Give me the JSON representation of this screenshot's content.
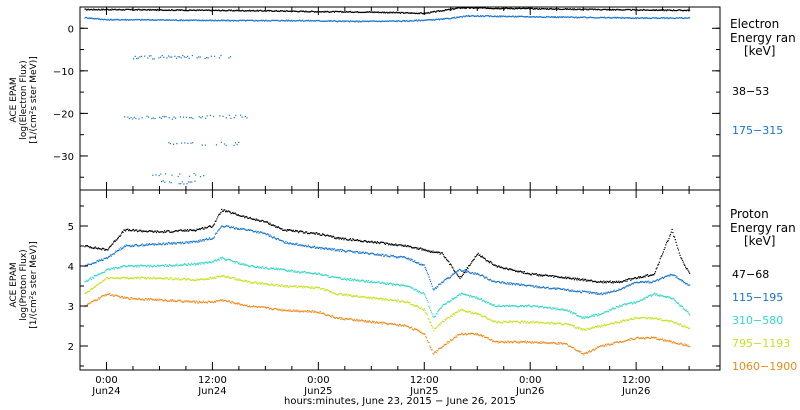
{
  "chart_data": [
    {
      "type": "scatter",
      "panel": "electron",
      "ylabel_lines": [
        "ACE EPAM",
        "log(Electron Flux)",
        "[1/(cm²s ster MeV)]"
      ],
      "ylim": [
        -38,
        5
      ],
      "yticks": [
        0,
        -10,
        -20,
        -30
      ],
      "ytick_labels": [
        "0",
        "−10",
        "−20",
        "−30"
      ],
      "legend_title": "Electron Energy range [keV]",
      "legend_title_lines": [
        "Electron",
        "Energy ran",
        "[keV]"
      ],
      "series": [
        {
          "name": "38–53",
          "label": "38−53",
          "color": "#000000",
          "points": [
            [
              -2.5,
              4.4
            ],
            [
              0,
              4.4
            ],
            [
              6,
              4.3
            ],
            [
              12,
              4.2
            ],
            [
              18,
              4.1
            ],
            [
              24,
              3.9
            ],
            [
              30,
              3.8
            ],
            [
              36,
              3.5
            ],
            [
              40,
              4.8
            ],
            [
              48,
              4.6
            ],
            [
              60,
              4.3
            ],
            [
              66,
              4.2
            ]
          ]
        },
        {
          "name": "175–315",
          "label": "175−315",
          "color": "#1874CD",
          "points": [
            [
              -2.5,
              2.5
            ],
            [
              0,
              2.0
            ],
            [
              3,
              2.0
            ],
            [
              14,
              1.8
            ],
            [
              22,
              1.8
            ],
            [
              28,
              1.6
            ],
            [
              34,
              1.7
            ],
            [
              38,
              2.1
            ],
            [
              41,
              2.9
            ],
            [
              48,
              2.7
            ],
            [
              60,
              2.4
            ],
            [
              66,
              2.4
            ]
          ],
          "dropouts": [
            {
              "x": [
                2,
                9
              ],
              "y": -21
            },
            {
              "x": [
                9,
                16
              ],
              "y": -20.8
            },
            {
              "x": [
                7,
                15
              ],
              "y": -27.2
            },
            {
              "x": [
                3,
                14
              ],
              "y": -6.8
            },
            {
              "x": [
                5,
                11
              ],
              "y": -34.5
            },
            {
              "x": [
                6,
                10
              ],
              "y": -36.2
            }
          ]
        }
      ]
    },
    {
      "type": "scatter",
      "panel": "proton",
      "ylabel_lines": [
        "ACE EPAM",
        "log(Proton Flux)",
        "[1/(cm²s ster MeV)]"
      ],
      "ylim": [
        1.4,
        5.9
      ],
      "yticks": [
        2,
        3,
        4,
        5
      ],
      "ytick_labels": [
        "2",
        "3",
        "4",
        "5"
      ],
      "legend_title": "Proton Energy range [keV]",
      "legend_title_lines": [
        "Proton",
        "Energy ran",
        "[keV]"
      ],
      "series": [
        {
          "name": "47–68",
          "label": "47−68",
          "color": "#000000",
          "points": [
            [
              -2.5,
              4.5
            ],
            [
              0,
              4.4
            ],
            [
              2,
              4.9
            ],
            [
              6,
              4.85
            ],
            [
              10,
              4.9
            ],
            [
              12,
              5.0
            ],
            [
              13,
              5.4
            ],
            [
              16,
              5.2
            ],
            [
              18,
              5.1
            ],
            [
              20,
              4.9
            ],
            [
              24,
              4.8
            ],
            [
              26,
              4.7
            ],
            [
              30,
              4.6
            ],
            [
              34,
              4.5
            ],
            [
              38,
              4.3
            ],
            [
              40,
              3.7
            ],
            [
              42,
              4.3
            ],
            [
              44,
              4.0
            ],
            [
              48,
              3.8
            ],
            [
              52,
              3.7
            ],
            [
              56,
              3.6
            ],
            [
              58,
              3.6
            ],
            [
              60,
              3.7
            ],
            [
              62,
              3.8
            ],
            [
              64,
              4.9
            ],
            [
              65,
              4.2
            ],
            [
              66,
              3.8
            ]
          ]
        },
        {
          "name": "115–195",
          "label": "115−195",
          "color": "#1874CD",
          "points": [
            [
              -2.5,
              4.0
            ],
            [
              0,
              4.2
            ],
            [
              2,
              4.5
            ],
            [
              6,
              4.55
            ],
            [
              10,
              4.6
            ],
            [
              12,
              4.7
            ],
            [
              13,
              5.0
            ],
            [
              16,
              4.9
            ],
            [
              18,
              4.8
            ],
            [
              20,
              4.6
            ],
            [
              24,
              4.45
            ],
            [
              26,
              4.4
            ],
            [
              30,
              4.3
            ],
            [
              34,
              4.2
            ],
            [
              36,
              4.0
            ],
            [
              37,
              3.4
            ],
            [
              38,
              3.6
            ],
            [
              40,
              3.9
            ],
            [
              42,
              3.8
            ],
            [
              44,
              3.6
            ],
            [
              48,
              3.5
            ],
            [
              52,
              3.4
            ],
            [
              56,
              3.3
            ],
            [
              58,
              3.4
            ],
            [
              60,
              3.6
            ],
            [
              62,
              3.6
            ],
            [
              64,
              3.8
            ],
            [
              66,
              3.5
            ]
          ]
        },
        {
          "name": "310–580",
          "label": "310−580",
          "color": "#33D6C5",
          "points": [
            [
              -2.5,
              3.6
            ],
            [
              0,
              3.9
            ],
            [
              2,
              4.0
            ],
            [
              6,
              4.0
            ],
            [
              10,
              4.05
            ],
            [
              12,
              4.1
            ],
            [
              13,
              4.2
            ],
            [
              16,
              4.0
            ],
            [
              20,
              3.9
            ],
            [
              24,
              3.8
            ],
            [
              26,
              3.7
            ],
            [
              30,
              3.6
            ],
            [
              34,
              3.5
            ],
            [
              36,
              3.3
            ],
            [
              37,
              2.7
            ],
            [
              38,
              3.0
            ],
            [
              40,
              3.3
            ],
            [
              42,
              3.2
            ],
            [
              44,
              3.0
            ],
            [
              48,
              3.0
            ],
            [
              52,
              2.9
            ],
            [
              54,
              2.7
            ],
            [
              56,
              2.8
            ],
            [
              58,
              3.0
            ],
            [
              60,
              3.1
            ],
            [
              62,
              3.3
            ],
            [
              64,
              3.2
            ],
            [
              66,
              2.8
            ]
          ]
        },
        {
          "name": "795–1193",
          "label": "795−1193",
          "color": "#C8E020",
          "points": [
            [
              -2.5,
              3.3
            ],
            [
              0,
              3.7
            ],
            [
              2,
              3.7
            ],
            [
              6,
              3.7
            ],
            [
              10,
              3.65
            ],
            [
              12,
              3.7
            ],
            [
              13,
              3.75
            ],
            [
              16,
              3.6
            ],
            [
              20,
              3.5
            ],
            [
              24,
              3.45
            ],
            [
              26,
              3.3
            ],
            [
              30,
              3.2
            ],
            [
              34,
              3.1
            ],
            [
              36,
              2.9
            ],
            [
              37,
              2.4
            ],
            [
              38,
              2.6
            ],
            [
              40,
              2.9
            ],
            [
              42,
              2.8
            ],
            [
              44,
              2.6
            ],
            [
              48,
              2.6
            ],
            [
              52,
              2.55
            ],
            [
              54,
              2.4
            ],
            [
              56,
              2.5
            ],
            [
              58,
              2.6
            ],
            [
              60,
              2.7
            ],
            [
              62,
              2.7
            ],
            [
              64,
              2.6
            ],
            [
              66,
              2.45
            ]
          ]
        },
        {
          "name": "1060–1900",
          "label": "1060−1900",
          "color": "#EE8A1C",
          "points": [
            [
              -2.5,
              3.0
            ],
            [
              0,
              3.3
            ],
            [
              2,
              3.2
            ],
            [
              6,
              3.15
            ],
            [
              10,
              3.1
            ],
            [
              12,
              3.1
            ],
            [
              13,
              3.15
            ],
            [
              16,
              3.0
            ],
            [
              20,
              2.9
            ],
            [
              24,
              2.85
            ],
            [
              26,
              2.7
            ],
            [
              30,
              2.6
            ],
            [
              34,
              2.5
            ],
            [
              36,
              2.3
            ],
            [
              37,
              1.8
            ],
            [
              38,
              2.0
            ],
            [
              40,
              2.3
            ],
            [
              42,
              2.3
            ],
            [
              44,
              2.1
            ],
            [
              48,
              2.1
            ],
            [
              52,
              2.05
            ],
            [
              54,
              1.8
            ],
            [
              56,
              2.0
            ],
            [
              58,
              2.1
            ],
            [
              60,
              2.2
            ],
            [
              62,
              2.2
            ],
            [
              64,
              2.1
            ],
            [
              66,
              2.0
            ]
          ]
        }
      ]
    }
  ],
  "x_axis": {
    "xlim": [
      -3,
      69.5
    ],
    "ticks": [
      0,
      12,
      24,
      36,
      48,
      60
    ],
    "tick_labels": [
      "0:00",
      "12:00",
      "0:00",
      "12:00",
      "0:00",
      "12:00"
    ],
    "date_labels": [
      "Jun24",
      "Jun24",
      "Jun25",
      "Jun25",
      "Jun26",
      "Jun26"
    ],
    "xlabel": "hours:minutes, June 23, 2015 − June 26, 2015"
  }
}
